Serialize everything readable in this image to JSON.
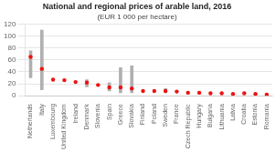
{
  "chart_data": {
    "type": "range",
    "title": "National and regional prices of arable land, 2016",
    "subtitle": "(EUR 1 000 per hectare)",
    "categories": [
      "Netherlands",
      "Italy",
      "Luxembourg",
      "United Kingdom",
      "Ireland",
      "Denmark",
      "Slovenia",
      "Spain",
      "Greece",
      "Slovakia",
      "Finland",
      "Poland",
      "Sweden",
      "France",
      "Czech Republic",
      "Hungary",
      "Bulgaria",
      "Lithuania",
      "Latvia",
      "Croatia",
      "Estonia",
      "Romania"
    ],
    "series": [
      {
        "type": "range",
        "color": "#b0b0b0",
        "low": [
          30,
          10,
          null,
          null,
          null,
          15,
          null,
          8,
          5,
          5,
          null,
          null,
          5,
          null,
          null,
          null,
          null,
          null,
          null,
          null,
          null,
          null
        ],
        "high": [
          75,
          110,
          null,
          null,
          null,
          27,
          null,
          22,
          47,
          50,
          null,
          null,
          12,
          null,
          null,
          null,
          null,
          null,
          null,
          null,
          null,
          null
        ]
      },
      {
        "type": "scatter",
        "color": "#ee1111",
        "values": [
          65,
          45,
          27,
          26,
          23,
          22,
          18,
          14,
          14,
          12,
          8,
          8,
          8,
          7,
          5,
          5,
          4,
          4,
          3,
          4,
          3,
          2
        ]
      }
    ],
    "ylim": [
      0,
      120
    ],
    "yticks": [
      0,
      20,
      40,
      60,
      80,
      100,
      120
    ],
    "grid": true
  }
}
